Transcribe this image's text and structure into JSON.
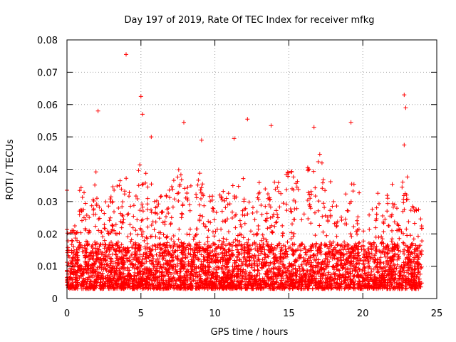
{
  "chart_data": {
    "type": "scatter",
    "title": "Day 197 of 2019, Rate Of TEC Index for receiver mfkg",
    "xlabel": "GPS time / hours",
    "ylabel": "ROTI / TECUs",
    "xlim": [
      0,
      25
    ],
    "ylim": [
      0,
      0.08
    ],
    "x_ticks": [
      0,
      5,
      10,
      15,
      20,
      25
    ],
    "x_tick_labels": [
      "0",
      "5",
      "10",
      "15",
      "20",
      "25"
    ],
    "y_ticks": [
      0,
      0.01,
      0.02,
      0.03,
      0.04,
      0.05,
      0.06,
      0.07,
      0.08
    ],
    "y_tick_labels": [
      "0",
      "0.01",
      "0.02",
      "0.03",
      "0.04",
      "0.05",
      "0.06",
      "0.07",
      "0.08"
    ],
    "grid": true,
    "marker": "+",
    "color": "#ff0000",
    "series": [
      {
        "name": "ROTI",
        "summary": "Dense scatter of ROTI samples spanning 0-24 h; bulk between 0.003 and 0.02 TECU/s with frequent spikes to 0.03-0.045",
        "notable_peaks": [
          {
            "x": 0.0,
            "y": 0.0335
          },
          {
            "x": 2.1,
            "y": 0.058
          },
          {
            "x": 4.0,
            "y": 0.0755
          },
          {
            "x": 5.0,
            "y": 0.0625
          },
          {
            "x": 5.1,
            "y": 0.057
          },
          {
            "x": 5.7,
            "y": 0.05
          },
          {
            "x": 7.9,
            "y": 0.0545
          },
          {
            "x": 9.1,
            "y": 0.049
          },
          {
            "x": 11.3,
            "y": 0.0495
          },
          {
            "x": 12.2,
            "y": 0.0555
          },
          {
            "x": 13.8,
            "y": 0.0535
          },
          {
            "x": 16.7,
            "y": 0.053
          },
          {
            "x": 19.2,
            "y": 0.0545
          },
          {
            "x": 22.8,
            "y": 0.063
          },
          {
            "x": 22.9,
            "y": 0.059
          },
          {
            "x": 22.8,
            "y": 0.0475
          }
        ],
        "envelope_hours": [
          0,
          0.5,
          1,
          1.5,
          2,
          2.5,
          3,
          3.5,
          4,
          4.5,
          5,
          5.5,
          6,
          6.5,
          7,
          7.5,
          8,
          8.5,
          9,
          9.5,
          10,
          10.5,
          11,
          11.5,
          12,
          12.5,
          13,
          13.5,
          14,
          14.5,
          15,
          15.5,
          16,
          16.5,
          17,
          17.5,
          18,
          18.5,
          19,
          19.5,
          20,
          20.5,
          21,
          21.5,
          22,
          22.5,
          23,
          23.5,
          24
        ],
        "envelope_typical_max": [
          0.022,
          0.022,
          0.042,
          0.025,
          0.045,
          0.03,
          0.038,
          0.036,
          0.04,
          0.032,
          0.044,
          0.04,
          0.03,
          0.034,
          0.034,
          0.042,
          0.038,
          0.034,
          0.04,
          0.032,
          0.036,
          0.034,
          0.04,
          0.034,
          0.038,
          0.03,
          0.036,
          0.034,
          0.042,
          0.032,
          0.044,
          0.036,
          0.04,
          0.044,
          0.046,
          0.04,
          0.034,
          0.03,
          0.036,
          0.036,
          0.03,
          0.026,
          0.034,
          0.03,
          0.04,
          0.034,
          0.04,
          0.028,
          0.028
        ]
      }
    ]
  }
}
